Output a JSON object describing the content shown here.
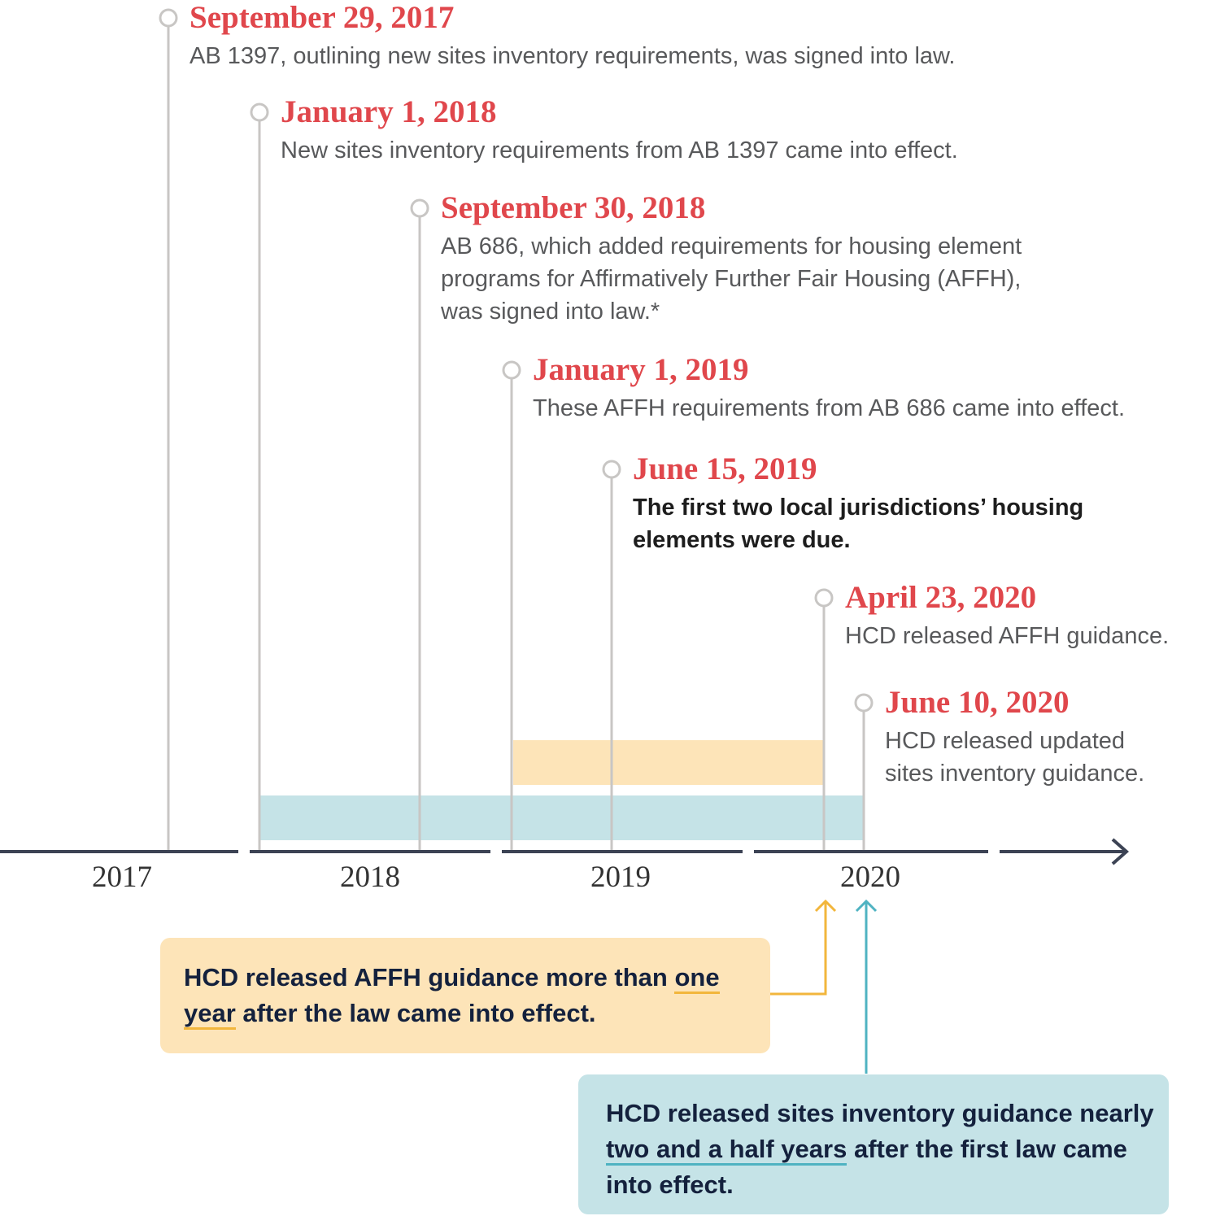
{
  "timeline": {
    "events": [
      {
        "date": "September 29, 2017",
        "description": [
          "AB 1397, outlining new sites inventory requirements, was signed into law."
        ]
      },
      {
        "date": "January 1, 2018",
        "description": [
          "New sites inventory requirements from AB 1397 came into effect."
        ]
      },
      {
        "date": "September 30, 2018",
        "description": [
          "AB 686, which added requirements for housing element",
          "programs for Affirmatively Further Fair Housing (AFFH),",
          "was signed into law.*"
        ]
      },
      {
        "date": "January 1, 2019",
        "description": [
          "These AFFH requirements from AB 686 came into effect."
        ]
      },
      {
        "date": "June 15, 2019",
        "description": [
          "The first two local jurisdictions’ housing",
          "elements were due."
        ]
      },
      {
        "date": "April 23, 2020",
        "description": [
          "HCD released AFFH guidance."
        ]
      },
      {
        "date": "June 10, 2020",
        "description": [
          "HCD released updated",
          "sites inventory guidance."
        ]
      }
    ],
    "years": [
      "2017",
      "2018",
      "2019",
      "2020"
    ]
  },
  "callouts": [
    {
      "before": "HCD released AFFH guidance more than",
      "highlight": "one year",
      "after": "after the law came into effect."
    },
    {
      "before": "HCD released sites inventory guidance nearly",
      "highlight": "two and a half years",
      "after": "after the first law came into effect."
    }
  ]
}
